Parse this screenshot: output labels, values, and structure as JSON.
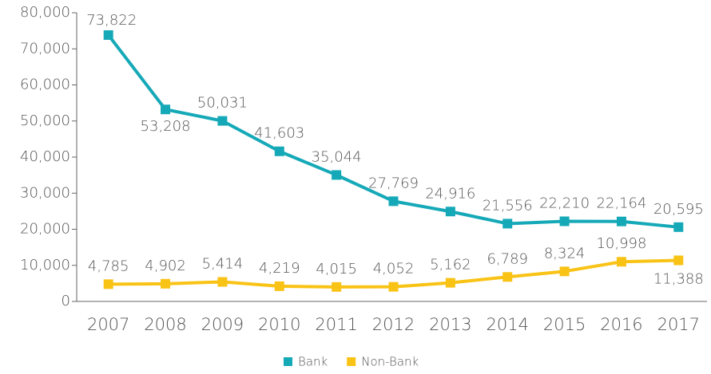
{
  "chart_data": {
    "type": "line",
    "categories": [
      "2007",
      "2008",
      "2009",
      "2010",
      "2011",
      "2012",
      "2013",
      "2014",
      "2015",
      "2016",
      "2017"
    ],
    "series": [
      {
        "name": "Bank",
        "color": "#15a9b8",
        "values": [
          73822,
          53208,
          50031,
          41603,
          35044,
          27769,
          24916,
          21556,
          22210,
          22164,
          20595
        ],
        "value_labels": [
          "73,822",
          "53,208",
          "50,031",
          "41,603",
          "35,044",
          "27,769",
          "24,916",
          "21,556",
          "22,210",
          "22,164",
          "20,595"
        ]
      },
      {
        "name": "Non-Bank",
        "color": "#f9c316",
        "values": [
          4785,
          4902,
          5414,
          4219,
          4015,
          4052,
          5162,
          6789,
          8324,
          10998,
          11388
        ],
        "value_labels": [
          "4,785",
          "4,902",
          "5,414",
          "4,219",
          "4,015",
          "4,052",
          "5,162",
          "6,789",
          "8,324",
          "10,998",
          "11,388"
        ]
      }
    ],
    "ylim": [
      0,
      80000
    ],
    "yticks": [
      0,
      {
        "value": 10000,
        "label": "10,000"
      },
      {
        "value": 20000,
        "label": "20,000"
      },
      {
        "value": 30000,
        "label": "30,000"
      },
      {
        "value": 40000,
        "label": "40,000"
      },
      {
        "value": 50000,
        "label": "50,000"
      },
      {
        "value": 60000,
        "label": "60,000"
      },
      {
        "value": 70000,
        "label": "70,000"
      },
      {
        "value": 80000,
        "label": "80,000"
      }
    ],
    "legend": "bottom"
  }
}
